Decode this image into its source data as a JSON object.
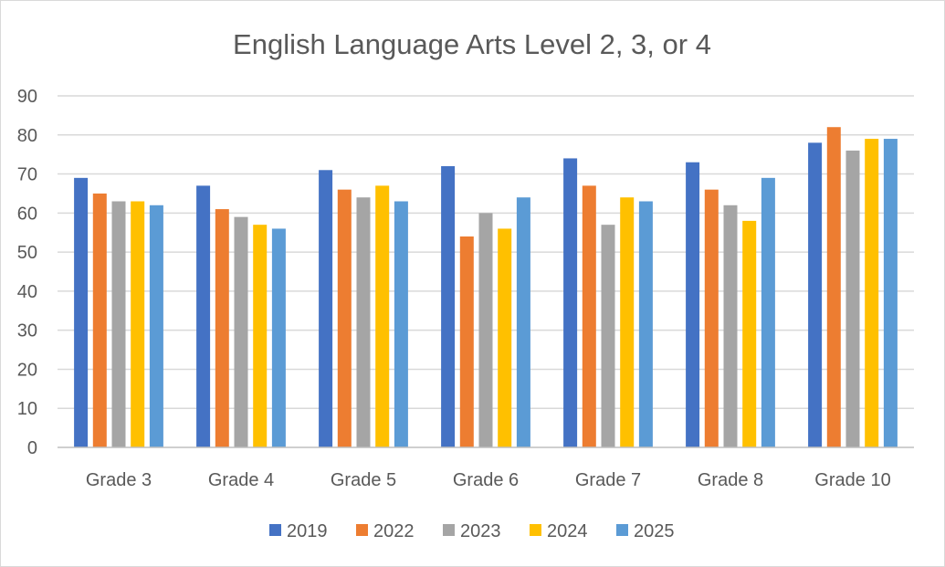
{
  "chart_data": {
    "type": "bar",
    "title": "English Language Arts Level 2, 3, or 4",
    "xlabel": "",
    "ylabel": "",
    "ylim": [
      0,
      90
    ],
    "yticks": [
      0,
      10,
      20,
      30,
      40,
      50,
      60,
      70,
      80,
      90
    ],
    "grid": true,
    "legend_position": "bottom",
    "categories": [
      "Grade 3",
      "Grade 4",
      "Grade 5",
      "Grade 6",
      "Grade 7",
      "Grade 8",
      "Grade 10"
    ],
    "series": [
      {
        "name": "2019",
        "color": "#4472c4",
        "values": [
          69,
          67,
          71,
          72,
          74,
          73,
          78
        ]
      },
      {
        "name": "2022",
        "color": "#ed7d31",
        "values": [
          65,
          61,
          66,
          54,
          67,
          66,
          82
        ]
      },
      {
        "name": "2023",
        "color": "#a5a5a5",
        "values": [
          63,
          59,
          64,
          60,
          57,
          62,
          76
        ]
      },
      {
        "name": "2024",
        "color": "#ffc000",
        "values": [
          63,
          57,
          67,
          56,
          64,
          58,
          79
        ]
      },
      {
        "name": "2025",
        "color": "#5b9bd5",
        "values": [
          62,
          56,
          63,
          64,
          63,
          69,
          79
        ]
      }
    ]
  }
}
